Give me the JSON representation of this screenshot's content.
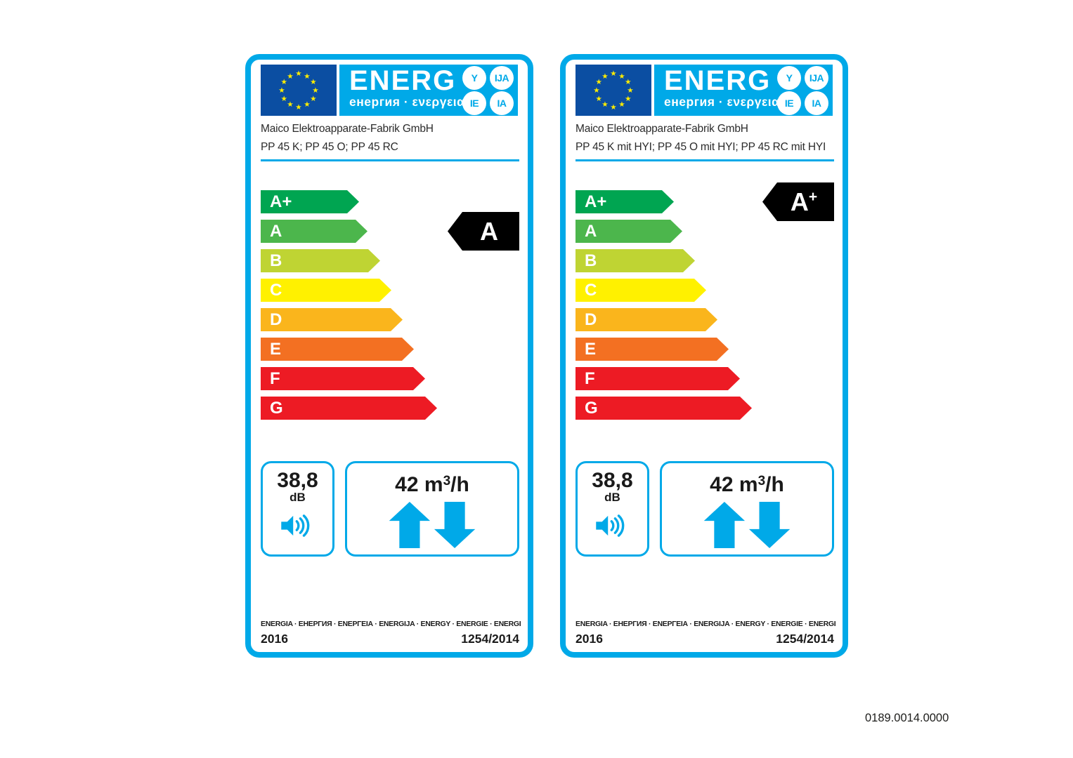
{
  "theme": {
    "accent_blue": "#00a9e8",
    "eu_flag_blue": "#0b4ea2",
    "star_yellow": "#ffed00",
    "indicator_black": "#000000"
  },
  "header": {
    "energ_text": "ENERG",
    "energ_subtitle": "енергия · ενεργεια",
    "badges": [
      "Y",
      "IJA",
      "IE",
      "IA"
    ]
  },
  "energy_scale": [
    {
      "label": "A+",
      "color": "#00a551"
    },
    {
      "label": "A",
      "color": "#4cb64c"
    },
    {
      "label": "B",
      "color": "#bfd433"
    },
    {
      "label": "C",
      "color": "#fff100"
    },
    {
      "label": "D",
      "color": "#fab51c"
    },
    {
      "label": "E",
      "color": "#f37022"
    },
    {
      "label": "F",
      "color": "#ed1b24"
    },
    {
      "label": "G",
      "color": "#ed1b24"
    }
  ],
  "labels": [
    {
      "supplier": "Maico Elektroapparate-Fabrik GmbH",
      "models": "PP 45 K; PP 45 O; PP 45 RC",
      "rating": "A",
      "rating_suffix": "",
      "rating_row_index": 1,
      "noise_value": "38,8",
      "noise_unit": "dB",
      "airflow_prefix": "42 m",
      "airflow_exp": "3",
      "airflow_suffix": "/h"
    },
    {
      "supplier": "Maico Elektroapparate-Fabrik GmbH",
      "models": "PP 45 K mit HYI; PP 45 O mit HYI; PP 45 RC mit HYI",
      "rating": "A",
      "rating_suffix": "+",
      "rating_row_index": 0,
      "noise_value": "38,8",
      "noise_unit": "dB",
      "airflow_prefix": "42 m",
      "airflow_exp": "3",
      "airflow_suffix": "/h"
    }
  ],
  "footer": {
    "languages": "ENERGIA · ЕНЕРГИЯ · ΕΝΕΡΓΕΙΑ · ENERGIJA · ENERGY · ENERGIE · ENERGI",
    "year": "2016",
    "regulation": "1254/2014"
  },
  "page": {
    "code": "0189.0014.0000"
  }
}
